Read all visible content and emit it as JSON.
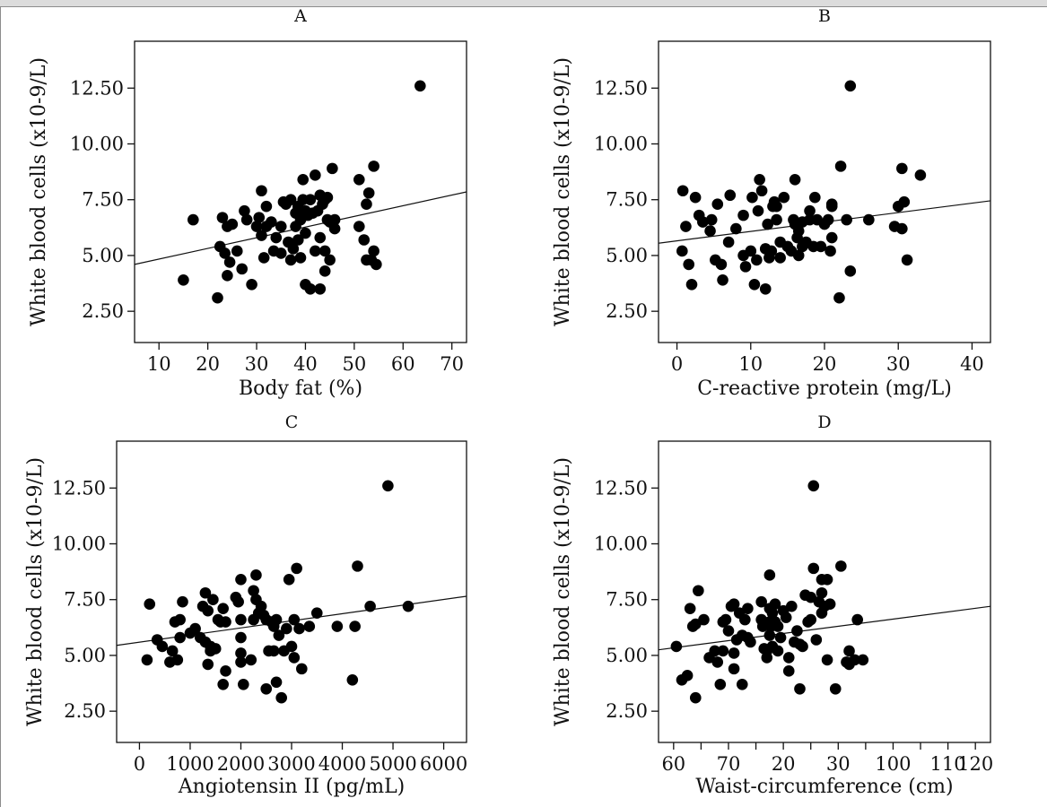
{
  "chart_data": [
    {
      "panel": "A",
      "type": "scatter",
      "title": "A",
      "xlabel": "Body fat (%)",
      "ylabel": "White blood cells (x10-9/L)",
      "xlim": [
        5,
        73
      ],
      "ylim": [
        1.1,
        14.6
      ],
      "xticks": [
        10,
        20,
        30,
        40,
        50,
        60,
        70
      ],
      "xtick_labels": [
        "10",
        "20",
        "30",
        "40",
        "50",
        "60",
        "70"
      ],
      "yticks": [
        2.5,
        5.0,
        7.5,
        10.0,
        12.5
      ],
      "ytick_labels": [
        "2.50",
        "5.00",
        "7.50",
        "10.00",
        "12.50"
      ],
      "fit_line": [
        [
          5,
          4.6
        ],
        [
          73,
          7.85
        ]
      ],
      "points": [
        [
          15,
          3.9
        ],
        [
          17,
          6.6
        ],
        [
          22,
          3.1
        ],
        [
          22.5,
          5.4
        ],
        [
          23,
          6.7
        ],
        [
          23.5,
          5.1
        ],
        [
          24,
          4.1
        ],
        [
          24,
          6.3
        ],
        [
          24.5,
          4.7
        ],
        [
          25,
          6.4
        ],
        [
          26,
          5.2
        ],
        [
          27,
          4.4
        ],
        [
          27.5,
          7.0
        ],
        [
          28,
          6.6
        ],
        [
          29,
          3.7
        ],
        [
          30,
          6.3
        ],
        [
          30.5,
          6.7
        ],
        [
          31,
          7.9
        ],
        [
          31,
          5.9
        ],
        [
          31.5,
          4.9
        ],
        [
          32,
          6.3
        ],
        [
          32,
          7.2
        ],
        [
          33,
          6.5
        ],
        [
          33.5,
          5.2
        ],
        [
          34,
          5.8
        ],
        [
          35,
          5.1
        ],
        [
          35,
          6.3
        ],
        [
          35.5,
          7.4
        ],
        [
          36,
          7.3
        ],
        [
          36.5,
          5.6
        ],
        [
          37,
          4.8
        ],
        [
          37,
          7.5
        ],
        [
          37.5,
          5.3
        ],
        [
          38,
          6.3
        ],
        [
          38,
          6.9
        ],
        [
          38.5,
          5.7
        ],
        [
          38.5,
          7.2
        ],
        [
          39,
          4.9
        ],
        [
          39,
          6.6
        ],
        [
          39.5,
          8.4
        ],
        [
          39.5,
          7.5
        ],
        [
          40,
          3.7
        ],
        [
          40,
          6.0
        ],
        [
          40,
          7.0
        ],
        [
          40.5,
          6.8
        ],
        [
          41,
          3.5
        ],
        [
          41,
          7.5
        ],
        [
          41.5,
          6.9
        ],
        [
          42,
          8.6
        ],
        [
          42,
          5.2
        ],
        [
          42.5,
          7.0
        ],
        [
          43,
          3.5
        ],
        [
          43,
          5.8
        ],
        [
          43,
          7.7
        ],
        [
          43.5,
          7.3
        ],
        [
          44,
          5.2
        ],
        [
          44,
          7.5
        ],
        [
          44,
          4.3
        ],
        [
          44.5,
          6.6
        ],
        [
          44.5,
          7.6
        ],
        [
          45,
          4.8
        ],
        [
          45,
          6.5
        ],
        [
          45.5,
          8.9
        ],
        [
          46,
          6.6
        ],
        [
          46,
          6.2
        ],
        [
          51,
          6.3
        ],
        [
          51,
          8.4
        ],
        [
          52,
          5.7
        ],
        [
          52.5,
          4.8
        ],
        [
          52.5,
          7.3
        ],
        [
          53,
          7.8
        ],
        [
          53.5,
          4.8
        ],
        [
          54,
          5.2
        ],
        [
          54,
          9.0
        ],
        [
          54.5,
          4.6
        ],
        [
          63.5,
          12.6
        ]
      ]
    },
    {
      "panel": "B",
      "type": "scatter",
      "title": "B",
      "xlabel": "C-reactive protein (mg/L)",
      "ylabel": "White blood cells (x10-9/L)",
      "xlim": [
        -2.5,
        42.5
      ],
      "ylim": [
        1.1,
        14.6
      ],
      "xticks": [
        0,
        10,
        20,
        30,
        40
      ],
      "xtick_labels": [
        "0",
        "10",
        "20",
        "30",
        "40"
      ],
      "yticks": [
        2.5,
        5.0,
        7.5,
        10.0,
        12.5
      ],
      "ytick_labels": [
        "2.50",
        "5.00",
        "7.50",
        "10.00",
        "12.50"
      ],
      "fit_line": [
        [
          -2.5,
          5.55
        ],
        [
          42.5,
          7.45
        ]
      ],
      "points": [
        [
          0.7,
          5.2
        ],
        [
          0.8,
          7.9
        ],
        [
          1.2,
          6.3
        ],
        [
          1.6,
          4.6
        ],
        [
          2,
          3.7
        ],
        [
          2.5,
          7.6
        ],
        [
          3,
          6.8
        ],
        [
          3.5,
          6.5
        ],
        [
          4.5,
          6.1
        ],
        [
          4.7,
          6.6
        ],
        [
          5.2,
          4.8
        ],
        [
          5.5,
          7.3
        ],
        [
          6,
          4.6
        ],
        [
          6.2,
          3.9
        ],
        [
          7,
          5.6
        ],
        [
          7.2,
          7.7
        ],
        [
          8,
          6.2
        ],
        [
          9,
          5.0
        ],
        [
          9,
          6.8
        ],
        [
          9.3,
          4.5
        ],
        [
          10,
          5.2
        ],
        [
          10.2,
          7.6
        ],
        [
          10.5,
          3.7
        ],
        [
          10.8,
          4.8
        ],
        [
          11,
          7.0
        ],
        [
          11.2,
          8.4
        ],
        [
          11.5,
          7.9
        ],
        [
          12,
          5.3
        ],
        [
          12,
          3.5
        ],
        [
          12.3,
          6.4
        ],
        [
          12.5,
          4.9
        ],
        [
          12.8,
          5.2
        ],
        [
          13,
          7.2
        ],
        [
          13.2,
          7.4
        ],
        [
          13.5,
          6.6
        ],
        [
          13.5,
          7.2
        ],
        [
          14,
          5.6
        ],
        [
          14,
          4.9
        ],
        [
          14.5,
          7.6
        ],
        [
          15,
          5.4
        ],
        [
          15.5,
          5.2
        ],
        [
          15.8,
          6.6
        ],
        [
          16,
          6.4
        ],
        [
          16,
          8.4
        ],
        [
          16.3,
          5.8
        ],
        [
          16.5,
          5.0
        ],
        [
          16.5,
          6.1
        ],
        [
          17,
          6.5
        ],
        [
          17,
          5.4
        ],
        [
          17.5,
          5.6
        ],
        [
          18,
          7.0
        ],
        [
          18,
          6.6
        ],
        [
          18.5,
          5.4
        ],
        [
          18.7,
          7.6
        ],
        [
          19,
          6.6
        ],
        [
          19.5,
          5.4
        ],
        [
          20,
          6.4
        ],
        [
          20.5,
          6.6
        ],
        [
          20.8,
          5.2
        ],
        [
          21,
          7.2
        ],
        [
          21,
          7.3
        ],
        [
          21,
          5.8
        ],
        [
          22,
          3.1
        ],
        [
          22.2,
          9.0
        ],
        [
          23,
          6.6
        ],
        [
          23.5,
          12.6
        ],
        [
          23.5,
          4.3
        ],
        [
          26,
          6.6
        ],
        [
          29.5,
          6.3
        ],
        [
          30,
          7.2
        ],
        [
          30.5,
          8.9
        ],
        [
          30.5,
          6.2
        ],
        [
          30.8,
          7.4
        ],
        [
          31.2,
          4.8
        ],
        [
          33,
          8.6
        ]
      ]
    },
    {
      "panel": "C",
      "type": "scatter",
      "title": "C",
      "xlabel": "Angiotensin II (pg/mL)",
      "ylabel": "White blood cells (x10-9/L)",
      "xlim": [
        -450,
        6450
      ],
      "ylim": [
        1.1,
        14.6
      ],
      "xticks": [
        0,
        1000,
        2000,
        3000,
        4000,
        5000,
        6000
      ],
      "xtick_labels": [
        "0",
        "1000",
        "2000",
        "3000",
        "4000",
        "5000",
        "6000"
      ],
      "yticks": [
        2.5,
        5.0,
        7.5,
        10.0,
        12.5
      ],
      "ytick_labels": [
        "2.50",
        "5.00",
        "7.50",
        "10.00",
        "12.50"
      ],
      "fit_line": [
        [
          -450,
          5.45
        ],
        [
          6450,
          7.65
        ]
      ],
      "points": [
        [
          150,
          4.8
        ],
        [
          200,
          7.3
        ],
        [
          350,
          5.7
        ],
        [
          450,
          5.4
        ],
        [
          600,
          4.7
        ],
        [
          650,
          5.2
        ],
        [
          700,
          6.5
        ],
        [
          750,
          4.8
        ],
        [
          800,
          6.6
        ],
        [
          800,
          5.8
        ],
        [
          850,
          7.4
        ],
        [
          1000,
          6.0
        ],
        [
          1100,
          6.2
        ],
        [
          1200,
          5.8
        ],
        [
          1250,
          7.2
        ],
        [
          1300,
          7.8
        ],
        [
          1300,
          5.6
        ],
        [
          1350,
          7.0
        ],
        [
          1350,
          4.6
        ],
        [
          1400,
          5.4
        ],
        [
          1400,
          5.2
        ],
        [
          1450,
          7.5
        ],
        [
          1500,
          5.3
        ],
        [
          1550,
          6.6
        ],
        [
          1600,
          6.5
        ],
        [
          1650,
          7.1
        ],
        [
          1700,
          4.3
        ],
        [
          1700,
          6.5
        ],
        [
          1650,
          3.7
        ],
        [
          1900,
          7.6
        ],
        [
          1950,
          7.4
        ],
        [
          2000,
          8.4
        ],
        [
          2000,
          6.6
        ],
        [
          2000,
          5.8
        ],
        [
          2000,
          5.1
        ],
        [
          2000,
          4.7
        ],
        [
          2050,
          3.7
        ],
        [
          2200,
          4.8
        ],
        [
          2250,
          7.9
        ],
        [
          2250,
          6.6
        ],
        [
          2300,
          8.6
        ],
        [
          2300,
          7.5
        ],
        [
          2350,
          6.9
        ],
        [
          2400,
          7.2
        ],
        [
          2450,
          6.8
        ],
        [
          2500,
          6.6
        ],
        [
          2500,
          3.5
        ],
        [
          2550,
          5.2
        ],
        [
          2600,
          6.5
        ],
        [
          2650,
          6.3
        ],
        [
          2650,
          5.2
        ],
        [
          2700,
          6.6
        ],
        [
          2700,
          3.8
        ],
        [
          2750,
          5.9
        ],
        [
          2800,
          3.1
        ],
        [
          2850,
          5.2
        ],
        [
          2900,
          6.2
        ],
        [
          2950,
          8.4
        ],
        [
          3000,
          5.4
        ],
        [
          3050,
          4.9
        ],
        [
          3050,
          6.6
        ],
        [
          3100,
          8.9
        ],
        [
          3150,
          6.2
        ],
        [
          3200,
          4.4
        ],
        [
          3350,
          6.3
        ],
        [
          3500,
          6.9
        ],
        [
          3900,
          6.3
        ],
        [
          4200,
          3.9
        ],
        [
          4250,
          6.3
        ],
        [
          4300,
          9.0
        ],
        [
          4550,
          7.2
        ],
        [
          4900,
          12.6
        ],
        [
          5300,
          7.2
        ]
      ]
    },
    {
      "panel": "D",
      "type": "scatter",
      "title": "D",
      "xlabel": "Waist-circumference (cm)",
      "ylabel": "White blood cells (x10-9/L)",
      "xlim": [
        4.5,
        125.5
      ],
      "ylim": [
        1.1,
        14.6
      ],
      "xticks": [
        10,
        20,
        30,
        40,
        50,
        60,
        70,
        80,
        90,
        100,
        110,
        120
      ],
      "xtick_labels": [
        "60",
        "70",
        "20",
        "30",
        "100",
        "110",
        "120"
      ],
      "tick_label_positions": [
        10,
        30,
        50,
        70,
        90,
        110,
        120
      ],
      "yticks": [
        2.5,
        5.0,
        7.5,
        10.0,
        12.5
      ],
      "ytick_labels": [
        "2.50",
        "5.00",
        "7.50",
        "10.00",
        "12.50"
      ],
      "fit_line": [
        [
          4.5,
          5.25
        ],
        [
          125.5,
          7.2
        ]
      ],
      "points": [
        [
          11,
          5.4
        ],
        [
          13,
          3.9
        ],
        [
          15,
          4.1
        ],
        [
          16,
          7.1
        ],
        [
          17,
          6.3
        ],
        [
          18,
          6.4
        ],
        [
          18,
          3.1
        ],
        [
          19,
          7.9
        ],
        [
          21,
          6.6
        ],
        [
          23,
          4.9
        ],
        [
          25,
          5.2
        ],
        [
          26,
          4.7
        ],
        [
          27,
          3.7
        ],
        [
          28,
          5.2
        ],
        [
          28,
          6.5
        ],
        [
          29,
          6.6
        ],
        [
          30,
          6.1
        ],
        [
          31,
          7.2
        ],
        [
          32,
          5.1
        ],
        [
          32,
          4.4
        ],
        [
          32,
          7.3
        ],
        [
          33,
          5.7
        ],
        [
          34,
          6.9
        ],
        [
          35,
          5.9
        ],
        [
          35,
          3.7
        ],
        [
          36,
          6.6
        ],
        [
          37,
          5.8
        ],
        [
          37,
          7.1
        ],
        [
          38,
          5.6
        ],
        [
          42,
          6.6
        ],
        [
          42,
          7.4
        ],
        [
          42.5,
          6.3
        ],
        [
          43,
          5.3
        ],
        [
          44,
          5.2
        ],
        [
          44,
          4.9
        ],
        [
          45,
          8.6
        ],
        [
          45,
          7.1
        ],
        [
          45,
          6.5
        ],
        [
          45,
          5.9
        ],
        [
          45.5,
          6.3
        ],
        [
          46,
          6.9
        ],
        [
          46,
          5.4
        ],
        [
          47,
          7.3
        ],
        [
          47,
          6.5
        ],
        [
          48,
          6.3
        ],
        [
          48,
          5.2
        ],
        [
          49,
          5.8
        ],
        [
          50,
          7.0
        ],
        [
          51,
          6.7
        ],
        [
          52,
          4.9
        ],
        [
          52,
          4.3
        ],
        [
          53,
          7.2
        ],
        [
          54,
          5.6
        ],
        [
          55,
          6.1
        ],
        [
          56,
          5.5
        ],
        [
          56,
          3.5
        ],
        [
          57,
          5.4
        ],
        [
          58,
          7.7
        ],
        [
          59,
          6.5
        ],
        [
          60,
          7.6
        ],
        [
          60,
          6.6
        ],
        [
          61,
          8.9
        ],
        [
          61,
          12.6
        ],
        [
          62,
          5.7
        ],
        [
          63,
          7.4
        ],
        [
          64,
          6.9
        ],
        [
          64,
          8.4
        ],
        [
          64,
          7.8
        ],
        [
          65,
          7.2
        ],
        [
          66,
          8.4
        ],
        [
          66,
          4.8
        ],
        [
          67,
          7.3
        ],
        [
          69,
          3.5
        ],
        [
          71,
          9.0
        ],
        [
          73,
          4.7
        ],
        [
          74,
          5.2
        ],
        [
          74,
          4.6
        ],
        [
          76,
          4.8
        ],
        [
          77,
          6.6
        ],
        [
          79,
          4.8
        ]
      ]
    }
  ]
}
